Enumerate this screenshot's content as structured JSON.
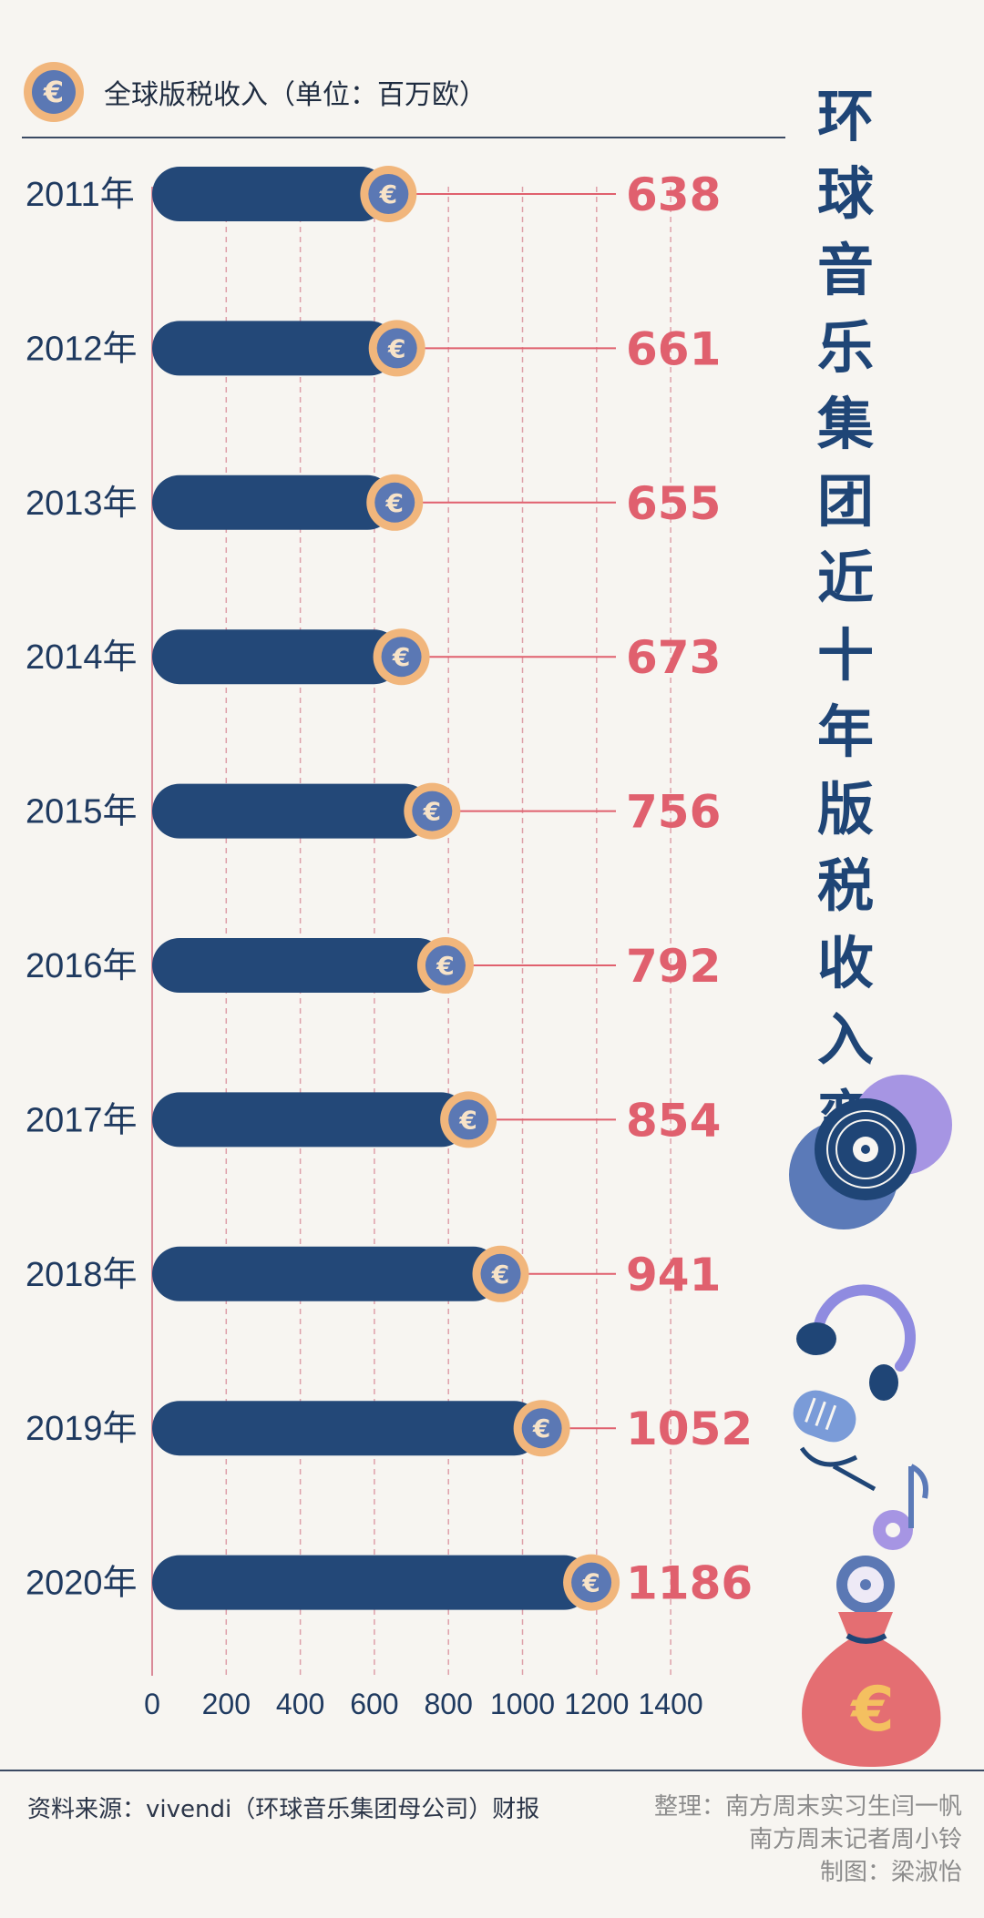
{
  "legend": {
    "label": "全球版税收入（单位：百万欧）",
    "icon": "euro-coin-icon"
  },
  "title": "环球音乐集团近十年版税收入变化",
  "source": "资料来源：vivendi（环球音乐集团母公司）财报",
  "credits": [
    "整理：南方周末实习生闫一帆",
    "南方周末记者周小铃",
    "制图：梁淑怡"
  ],
  "colors": {
    "bar": "#234878",
    "value": "#e0606e",
    "coin": "#f1b67c",
    "coin_inner": "#5b78b4",
    "grid": "#d98a98"
  },
  "decorations": [
    "vinyl-record-icon",
    "headphones-icon",
    "microphone-icon",
    "music-note-icon",
    "money-bag-icon"
  ],
  "chart_data": {
    "type": "bar",
    "orientation": "horizontal",
    "categories": [
      "2011年",
      "2012年",
      "2013年",
      "2014年",
      "2015年",
      "2016年",
      "2017年",
      "2018年",
      "2019年",
      "2020年"
    ],
    "values": [
      638,
      661,
      655,
      673,
      756,
      792,
      854,
      941,
      1052,
      1186
    ],
    "xlim": [
      0,
      1400
    ],
    "xticks": [
      0,
      200,
      400,
      600,
      800,
      1000,
      1200,
      1400
    ],
    "grid": true,
    "unit": "百万欧"
  }
}
